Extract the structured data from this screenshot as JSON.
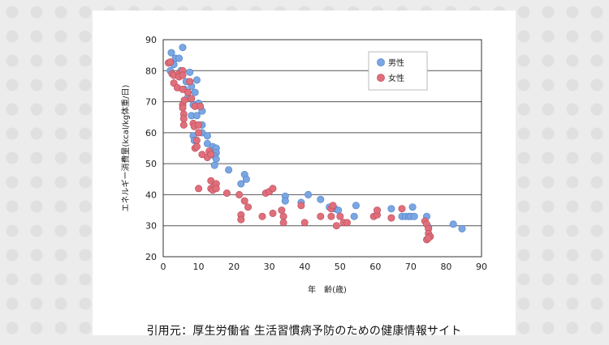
{
  "colors": {
    "male": "#7aa6e3",
    "female": "#e06f7c",
    "male_stroke": "#4f7fc2",
    "female_stroke": "#b84a58"
  },
  "citation": "引用元：厚生労働省 生活習慣病予防のための健康情報サイト",
  "chart_data": {
    "type": "scatter",
    "title": "",
    "xlabel": "年　齢(歳)",
    "ylabel": "エネルギー消費量(kcal/kg体重/日)",
    "xlim": [
      0,
      90
    ],
    "ylim": [
      20,
      90
    ],
    "xticks": [
      0,
      10,
      20,
      30,
      40,
      50,
      60,
      70,
      80,
      90
    ],
    "yticks": [
      20,
      30,
      40,
      50,
      60,
      70,
      80,
      90
    ],
    "legend_position": "top-right",
    "series": [
      {
        "name": "男性",
        "color_key": "male",
        "points": [
          [
            2.0,
            80.0
          ],
          [
            2.3,
            85.8
          ],
          [
            3.0,
            82.0
          ],
          [
            3.5,
            84.0
          ],
          [
            4.5,
            84.0
          ],
          [
            5.5,
            87.5
          ],
          [
            5.0,
            80.0
          ],
          [
            6.0,
            74.0
          ],
          [
            6.5,
            76.5
          ],
          [
            7.0,
            71.5
          ],
          [
            7.5,
            79.5
          ],
          [
            8.0,
            75.0
          ],
          [
            8.0,
            65.5
          ],
          [
            8.5,
            69.0
          ],
          [
            8.5,
            59.0
          ],
          [
            8.8,
            57.5
          ],
          [
            9.0,
            73.0
          ],
          [
            9.5,
            77.0
          ],
          [
            9.5,
            65.5
          ],
          [
            10.0,
            69.5
          ],
          [
            11.0,
            67.0
          ],
          [
            11.0,
            62.5
          ],
          [
            11.0,
            60.0
          ],
          [
            12.5,
            59.0
          ],
          [
            12.5,
            56.5
          ],
          [
            14.0,
            55.5
          ],
          [
            14.5,
            54.5
          ],
          [
            15.0,
            55.0
          ],
          [
            15.0,
            53.5
          ],
          [
            14.5,
            52.5
          ],
          [
            15.0,
            51.5
          ],
          [
            14.5,
            49.5
          ],
          [
            18.5,
            48.0
          ],
          [
            22.0,
            43.5
          ],
          [
            23.0,
            46.5
          ],
          [
            23.5,
            45.0
          ],
          [
            34.5,
            39.5
          ],
          [
            34.5,
            38.0
          ],
          [
            39.0,
            37.5
          ],
          [
            41.0,
            40.0
          ],
          [
            44.5,
            38.5
          ],
          [
            47.0,
            36.0
          ],
          [
            48.5,
            35.5
          ],
          [
            49.5,
            35.0
          ],
          [
            54.0,
            33.0
          ],
          [
            54.5,
            36.5
          ],
          [
            64.5,
            35.5
          ],
          [
            67.5,
            33.0
          ],
          [
            68.5,
            33.0
          ],
          [
            69.5,
            33.0
          ],
          [
            70.0,
            33.0
          ],
          [
            70.5,
            36.0
          ],
          [
            71.0,
            33.0
          ],
          [
            74.5,
            33.0
          ],
          [
            75.0,
            29.5
          ],
          [
            82.0,
            30.5
          ],
          [
            84.5,
            29.0
          ]
        ]
      },
      {
        "name": "女性",
        "color_key": "female",
        "points": [
          [
            1.5,
            82.5
          ],
          [
            2.0,
            82.8
          ],
          [
            2.5,
            79.0
          ],
          [
            3.0,
            78.5
          ],
          [
            3.0,
            76.0
          ],
          [
            4.0,
            74.5
          ],
          [
            4.5,
            79.0
          ],
          [
            4.5,
            78.0
          ],
          [
            5.5,
            80.0
          ],
          [
            5.5,
            78.5
          ],
          [
            5.5,
            74.0
          ],
          [
            5.5,
            69.0
          ],
          [
            5.5,
            68.0
          ],
          [
            5.8,
            66.0
          ],
          [
            5.8,
            64.5
          ],
          [
            5.8,
            62.5
          ],
          [
            6.0,
            70.5
          ],
          [
            7.0,
            73.0
          ],
          [
            7.5,
            76.5
          ],
          [
            8.0,
            71.0
          ],
          [
            8.5,
            63.0
          ],
          [
            8.8,
            62.0
          ],
          [
            9.0,
            68.5
          ],
          [
            9.0,
            55.0
          ],
          [
            9.5,
            57.5
          ],
          [
            9.5,
            55.5
          ],
          [
            10.0,
            62.5
          ],
          [
            10.0,
            60.0
          ],
          [
            10.5,
            68.5
          ],
          [
            11.0,
            53.0
          ],
          [
            12.5,
            52.0
          ],
          [
            13.0,
            54.0
          ],
          [
            13.5,
            53.0
          ],
          [
            13.5,
            44.5
          ],
          [
            13.5,
            42.0
          ],
          [
            14.0,
            41.5
          ],
          [
            14.5,
            43.0
          ],
          [
            15.0,
            43.5
          ],
          [
            15.0,
            42.0
          ],
          [
            10.0,
            42.0
          ],
          [
            18.0,
            40.5
          ],
          [
            21.5,
            40.0
          ],
          [
            22.0,
            33.5
          ],
          [
            22.0,
            32.0
          ],
          [
            23.0,
            38.0
          ],
          [
            24.0,
            36.0
          ],
          [
            28.0,
            33.0
          ],
          [
            29.0,
            40.5
          ],
          [
            30.0,
            41.0
          ],
          [
            31.0,
            42.0
          ],
          [
            31.0,
            34.0
          ],
          [
            33.5,
            35.0
          ],
          [
            34.0,
            33.0
          ],
          [
            34.0,
            31.0
          ],
          [
            39.0,
            36.5
          ],
          [
            40.0,
            31.0
          ],
          [
            44.5,
            33.0
          ],
          [
            47.5,
            33.0
          ],
          [
            47.5,
            35.5
          ],
          [
            48.0,
            36.5
          ],
          [
            49.0,
            30.0
          ],
          [
            50.0,
            33.0
          ],
          [
            51.0,
            31.0
          ],
          [
            52.0,
            31.0
          ],
          [
            59.5,
            33.0
          ],
          [
            60.5,
            33.5
          ],
          [
            60.5,
            35.0
          ],
          [
            64.5,
            32.5
          ],
          [
            67.5,
            35.5
          ],
          [
            74.0,
            31.5
          ],
          [
            74.5,
            30.5
          ],
          [
            75.0,
            29.0
          ],
          [
            75.0,
            27.5
          ],
          [
            75.5,
            26.5
          ],
          [
            74.5,
            25.5
          ],
          [
            75.0,
            26.0
          ]
        ]
      }
    ]
  }
}
